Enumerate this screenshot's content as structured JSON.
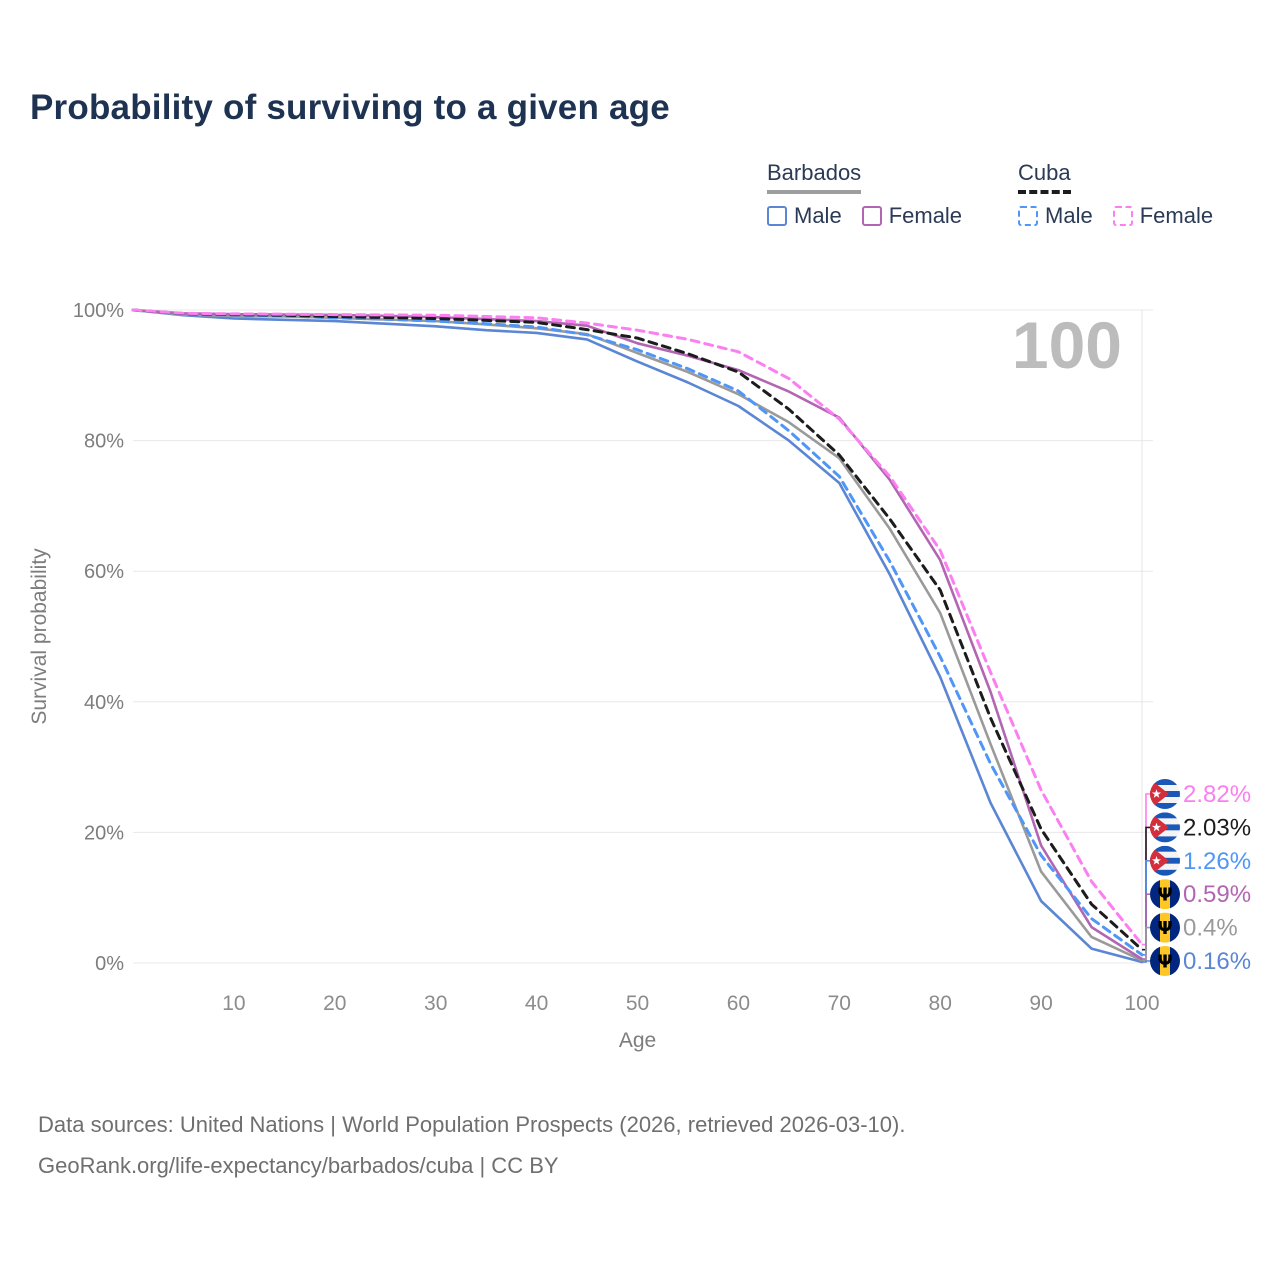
{
  "header": {
    "title": "Probability of surviving to a given age"
  },
  "legend": {
    "groups": [
      {
        "country": "Barbados",
        "line_style": "solid",
        "underline_color": "#9e9e9e",
        "items": [
          {
            "label": "Male",
            "color": "#5b86d4"
          },
          {
            "label": "Female",
            "color": "#b266b2"
          }
        ]
      },
      {
        "country": "Cuba",
        "line_style": "dashed",
        "underline_color": "#1c1c1c",
        "items": [
          {
            "label": "Male",
            "color": "#4f96f7"
          },
          {
            "label": "Female",
            "color": "#fb7ff0"
          }
        ]
      }
    ]
  },
  "watermark": "100",
  "chart_data": {
    "type": "line",
    "title": "Probability of surviving to a given age",
    "xlabel": "Age",
    "ylabel": "Survival probability",
    "xlim": [
      0,
      100
    ],
    "ylim": [
      0,
      100
    ],
    "x_ticks": [
      10,
      20,
      30,
      40,
      50,
      60,
      70,
      80,
      90,
      100
    ],
    "y_ticks": [
      0,
      20,
      40,
      60,
      80,
      100
    ],
    "y_tick_suffix": "%",
    "grid": "horizontal",
    "legend_position": "top-right",
    "x": [
      0,
      5,
      10,
      15,
      20,
      25,
      30,
      35,
      40,
      45,
      50,
      55,
      60,
      65,
      70,
      75,
      80,
      85,
      90,
      95,
      100
    ],
    "series": [
      {
        "id": "cuba-female",
        "country": "Cuba",
        "sex": "Female",
        "color": "#fb7ff0",
        "dash": true,
        "flag": "cuba",
        "end_label": "2.82%",
        "values": [
          100,
          99.5,
          99.4,
          99.35,
          99.3,
          99.25,
          99.2,
          99.0,
          98.8,
          98.0,
          96.9,
          95.5,
          93.6,
          89.5,
          83.3,
          74.5,
          63.2,
          44.5,
          26.5,
          12.5,
          2.82
        ]
      },
      {
        "id": "cuba-total",
        "country": "Cuba",
        "sex": "Both",
        "color": "#1c1c1c",
        "dash": true,
        "flag": "cuba",
        "end_label": "2.03%",
        "values": [
          100,
          99.45,
          99.3,
          99.2,
          99.0,
          98.85,
          98.7,
          98.4,
          98.1,
          97.0,
          95.7,
          93.3,
          90.5,
          84.8,
          77.8,
          68.0,
          57.1,
          37.5,
          20.5,
          9.0,
          2.03
        ]
      },
      {
        "id": "cuba-male",
        "country": "Cuba",
        "sex": "Male",
        "color": "#4f96f7",
        "dash": true,
        "flag": "cuba",
        "end_label": "1.26%",
        "values": [
          100,
          99.4,
          99.25,
          99.1,
          98.8,
          98.6,
          98.3,
          97.9,
          97.4,
          96.2,
          93.9,
          91.0,
          87.6,
          81.5,
          74.5,
          61.5,
          46.9,
          30.5,
          16.5,
          6.8,
          1.26
        ]
      },
      {
        "id": "barbados-female",
        "country": "Barbados",
        "sex": "Female",
        "color": "#b266b2",
        "dash": false,
        "flag": "barbados",
        "end_label": "0.59%",
        "values": [
          100,
          99.5,
          99.35,
          99.3,
          99.25,
          99.1,
          98.9,
          98.6,
          98.3,
          97.6,
          94.9,
          93.0,
          90.8,
          87.5,
          83.5,
          74.0,
          61.7,
          41.5,
          18.0,
          5.5,
          0.59
        ]
      },
      {
        "id": "barbados-total",
        "country": "Barbados",
        "sex": "Both",
        "color": "#9a9a9a",
        "dash": false,
        "flag": "barbados",
        "end_label": "0.4%",
        "values": [
          100,
          99.3,
          99.1,
          99.0,
          98.8,
          98.55,
          98.3,
          97.8,
          97.2,
          96.3,
          93.4,
          90.5,
          87.1,
          82.8,
          77.3,
          66.5,
          53.6,
          33.5,
          14.0,
          4.0,
          0.4
        ]
      },
      {
        "id": "barbados-male",
        "country": "Barbados",
        "sex": "Male",
        "color": "#5b86d4",
        "dash": false,
        "flag": "barbados",
        "end_label": "0.16%",
        "values": [
          100,
          99.2,
          98.7,
          98.5,
          98.3,
          97.9,
          97.5,
          96.9,
          96.5,
          95.5,
          92.1,
          88.9,
          85.3,
          80.0,
          73.5,
          59.5,
          43.8,
          24.5,
          9.5,
          2.2,
          0.16
        ]
      }
    ]
  },
  "footer": {
    "line1": "Data sources: United Nations | World Population Prospects (2026, retrieved 2026-03-10).",
    "line2": "GeoRank.org/life-expectancy/barbados/cuba | CC BY"
  }
}
